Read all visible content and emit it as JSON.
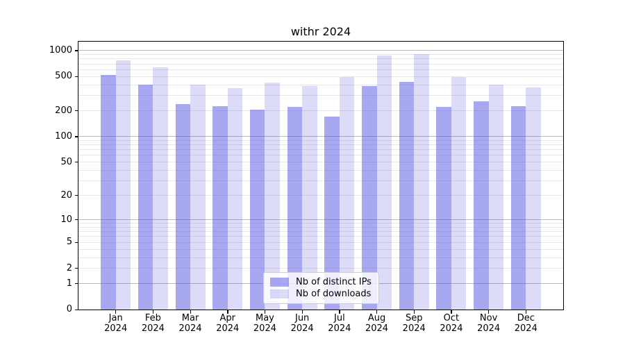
{
  "chart_data": {
    "type": "bar",
    "title": "withr 2024",
    "categories": [
      "Jan",
      "Feb",
      "Mar",
      "Apr",
      "May",
      "Jun",
      "Jul",
      "Aug",
      "Sep",
      "Oct",
      "Nov",
      "Dec"
    ],
    "x_year_label": "2024",
    "series": [
      {
        "name": "Nb of distinct IPs",
        "color": "rgba(81,81,225,0.5)",
        "values": [
          520,
          405,
          240,
          225,
          205,
          220,
          170,
          390,
          430,
          220,
          260,
          225
        ]
      },
      {
        "name": "Nb of downloads",
        "color": "rgba(81,81,225,0.2)",
        "values": [
          770,
          640,
          400,
          365,
          425,
          390,
          495,
          875,
          915,
          490,
          405,
          375
        ]
      }
    ],
    "y_ticks": [
      0,
      1,
      2,
      5,
      10,
      20,
      50,
      100,
      200,
      500,
      1000
    ],
    "y_scale": "log1p",
    "ylim": [
      0,
      1270
    ],
    "xlabel": "",
    "ylabel": "",
    "grid": "both-horizontal",
    "legend_position": "lower center",
    "colors": {
      "bar_dark": "#a8a8f0",
      "bar_light": "#dcdcf8",
      "major_grid": "#b8b8b8",
      "minor_grid": "#e7e7e7",
      "spine": "#000000",
      "legend_border": "#cccccc"
    }
  }
}
